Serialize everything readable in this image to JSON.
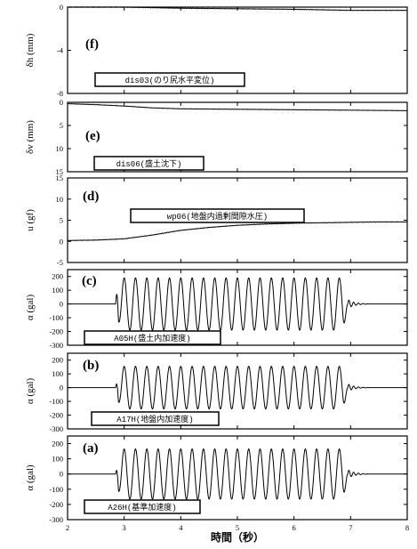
{
  "chart_data": {
    "type": "line",
    "xlabel": "時間（秒）",
    "xlim": [
      2,
      8
    ],
    "x_ticks": [
      "2",
      "3",
      "4",
      "5",
      "6",
      "7",
      "8"
    ],
    "panels": [
      {
        "letter": "(f)",
        "ylabel": "δh (mm)",
        "ylim": [
          -8,
          0
        ],
        "y_ticks": [
          "0",
          "-4",
          "-8"
        ],
        "series_label": "dis03(のり尻水平変位)",
        "signal": {
          "kind": "drift",
          "points": [
            [
              2,
              0.0
            ],
            [
              3,
              0.0
            ],
            [
              4,
              -0.1
            ],
            [
              5,
              -0.15
            ],
            [
              6,
              -0.2
            ],
            [
              7,
              -0.3
            ],
            [
              8,
              -0.3
            ]
          ]
        },
        "color": "#000000"
      },
      {
        "letter": "(e)",
        "ylabel": "δv (mm)",
        "ylim": [
          15,
          0
        ],
        "y_ticks": [
          "0",
          "5",
          "10",
          "15"
        ],
        "series_label": "dis06(盛土沈下)",
        "signal": {
          "kind": "drift",
          "points": [
            [
              2,
              0.3
            ],
            [
              2.5,
              0.5
            ],
            [
              3,
              0.8
            ],
            [
              3.5,
              1.2
            ],
            [
              4,
              1.4
            ],
            [
              5,
              1.5
            ],
            [
              6,
              1.6
            ],
            [
              7,
              1.7
            ],
            [
              8,
              1.8
            ]
          ]
        },
        "color": "#000000"
      },
      {
        "letter": "(d)",
        "ylabel": "u (gf)",
        "ylim": [
          -5,
          15
        ],
        "y_ticks": [
          "-5",
          "0",
          "5",
          "10",
          "15"
        ],
        "series_label": "wp06(地盤内過剰間隙水圧)",
        "signal": {
          "kind": "drift",
          "points": [
            [
              2,
              0.2
            ],
            [
              2.5,
              0.3
            ],
            [
              3,
              0.6
            ],
            [
              3.5,
              1.5
            ],
            [
              4,
              2.6
            ],
            [
              4.5,
              3.3
            ],
            [
              5,
              3.8
            ],
            [
              5.5,
              4.1
            ],
            [
              6,
              4.3
            ],
            [
              6.5,
              4.4
            ],
            [
              7,
              4.5
            ],
            [
              7.5,
              4.6
            ],
            [
              8,
              4.6
            ]
          ]
        },
        "color": "#000000"
      },
      {
        "letter": "(c)",
        "ylabel": "α (gal)",
        "ylim": [
          -300,
          250
        ],
        "y_ticks": [
          "200",
          "100",
          "0",
          "-100",
          "-200",
          "-300"
        ],
        "series_label": "A05H(盛土内加速度)",
        "signal": {
          "kind": "sine",
          "t_start": 2.85,
          "t_end": 6.95,
          "freq_hz": 5,
          "amplitude": 190,
          "onset_spike": 230
        },
        "color": "#000000"
      },
      {
        "letter": "(b)",
        "ylabel": "α (gal)",
        "ylim": [
          -300,
          250
        ],
        "y_ticks": [
          "200",
          "100",
          "0",
          "-100",
          "-200",
          "-300"
        ],
        "series_label": "A17H(地盤内加速度)",
        "signal": {
          "kind": "sine",
          "t_start": 2.85,
          "t_end": 6.95,
          "freq_hz": 5,
          "amplitude": 155,
          "onset_spike": 130
        },
        "color": "#000000"
      },
      {
        "letter": "(a)",
        "ylabel": "α (gal)",
        "ylim": [
          -300,
          250
        ],
        "y_ticks": [
          "200",
          "100",
          "0",
          "-100",
          "-200",
          "-300"
        ],
        "series_label": "A26H(基準加速度)",
        "signal": {
          "kind": "sine",
          "t_start": 2.85,
          "t_end": 6.95,
          "freq_hz": 5,
          "amplitude": 165,
          "onset_spike": 130
        },
        "color": "#000000"
      }
    ]
  }
}
